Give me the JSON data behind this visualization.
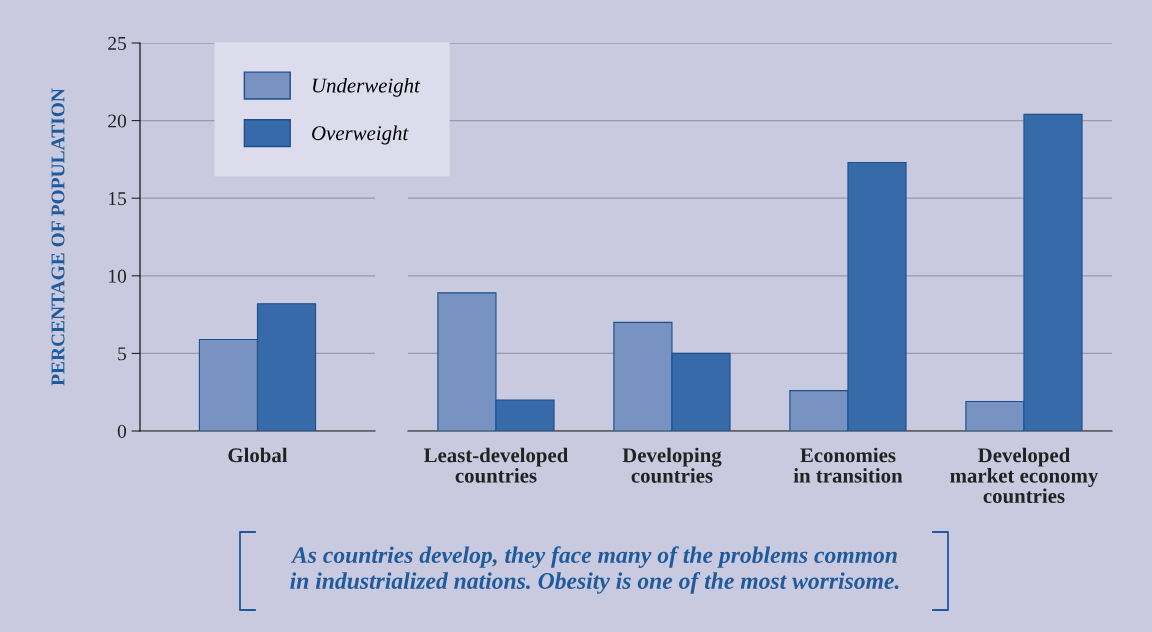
{
  "chart_data": [
    {
      "type": "bar",
      "ylabel": "PERCENTAGE OF POPULATION",
      "categories": [
        "Global"
      ],
      "series": [
        {
          "name": "Underweight",
          "color": "#7892c2",
          "values": [
            5.9
          ]
        },
        {
          "name": "Overweight",
          "color": "#376aa8",
          "values": [
            8.2
          ]
        }
      ],
      "ylim": [
        0,
        25
      ],
      "yticks": [
        0,
        5,
        10,
        15,
        20,
        25
      ],
      "grid": "y",
      "legend": "top right"
    },
    {
      "type": "bar",
      "categories": [
        "Least-developed\ncountries",
        "Developing\ncountries",
        "Economies\nin transition",
        "Developed\nmarket economy\ncountries"
      ],
      "series": [
        {
          "color": "#7892c2",
          "values": [
            8.9,
            7.0,
            2.6,
            1.9
          ]
        },
        {
          "color": "#376aa8",
          "values": [
            2.0,
            5.0,
            17.3,
            20.4
          ]
        }
      ],
      "ylim": [
        0,
        25
      ],
      "yticks": [
        0,
        5,
        10,
        15,
        20,
        25
      ],
      "grid": "y",
      "tick_labels": "x",
      "annotations": [
        "As countries develop, they face many of the problems common\nin industrialized nations. Obesity is one of the most worrisome."
      ]
    }
  ]
}
